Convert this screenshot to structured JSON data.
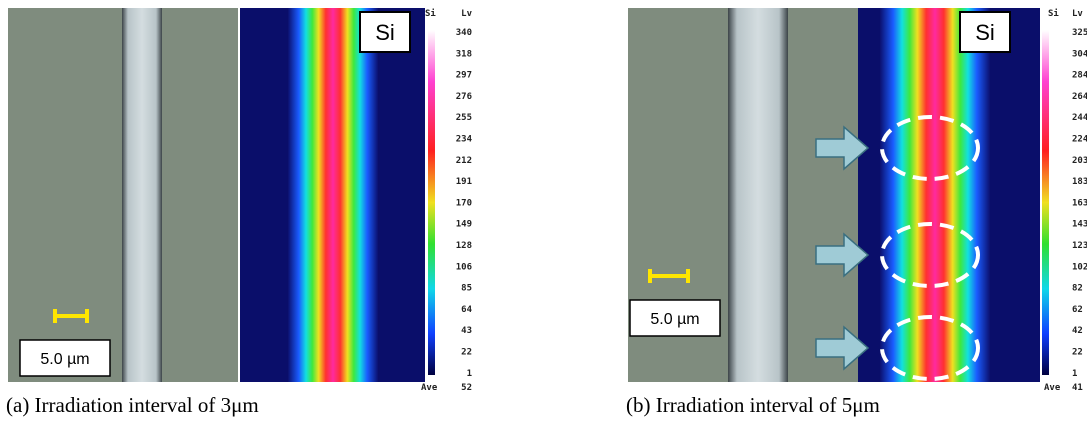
{
  "panels": [
    {
      "caption": "(a) Irradiation interval of 3μm",
      "scale_bar": "5.0 µm",
      "map_label": "Si",
      "colorbar": {
        "element": "Si",
        "unit": "Lv",
        "levels": [
          340,
          318,
          297,
          276,
          255,
          234,
          212,
          191,
          170,
          149,
          128,
          106,
          85,
          64,
          43,
          22,
          1
        ],
        "average_label": "Ave",
        "average": 52
      }
    },
    {
      "caption": "(b) Irradiation interval of 5μm",
      "scale_bar": "5.0 µm",
      "map_label": "Si",
      "colorbar": {
        "element": "Si",
        "unit": "Lv",
        "levels": [
          325,
          304,
          284,
          264,
          244,
          224,
          203,
          183,
          163,
          143,
          123,
          102,
          82,
          62,
          42,
          22,
          1
        ],
        "average_label": "Ave",
        "average": 41
      }
    }
  ]
}
